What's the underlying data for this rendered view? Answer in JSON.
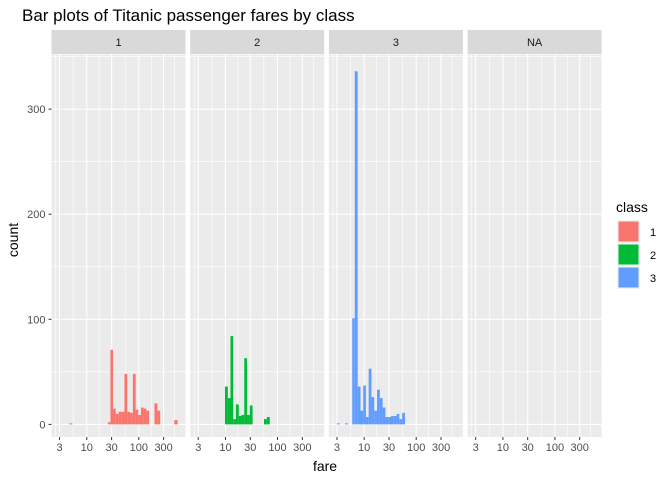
{
  "chart_data": {
    "type": "bar",
    "title": "Bar plots of Titanic passenger fares by class",
    "xlabel": "fare",
    "ylabel": "count",
    "x_scale": "log10",
    "x_ticks": [
      3,
      10,
      30,
      100,
      300
    ],
    "x_tick_labels": [
      "3",
      "10",
      "30",
      "100",
      "300"
    ],
    "y_ticks": [
      0,
      100,
      200,
      300
    ],
    "y_tick_labels": [
      "0",
      "100",
      "200",
      "300"
    ],
    "ylim": [
      -12,
      352
    ],
    "xlim": [
      2.1,
      790
    ],
    "grid": true,
    "legend": {
      "title": "class",
      "position": "right",
      "entries": [
        {
          "label": "1",
          "color": "#F8766D"
        },
        {
          "label": "2",
          "color": "#00BA38"
        },
        {
          "label": "3",
          "color": "#619CFF"
        }
      ]
    },
    "facets": [
      {
        "label": "1",
        "color": "#F8766D",
        "bins": [
          {
            "x0": 4.6,
            "x1": 5.3,
            "count": 1
          },
          {
            "x0": 25.5,
            "x1": 28.5,
            "count": 2
          },
          {
            "x0": 28.5,
            "x1": 32.0,
            "count": 71
          },
          {
            "x0": 32.0,
            "x1": 36.0,
            "count": 15
          },
          {
            "x0": 36.0,
            "x1": 41.0,
            "count": 10
          },
          {
            "x0": 41.0,
            "x1": 47.0,
            "count": 12
          },
          {
            "x0": 47.0,
            "x1": 53.0,
            "count": 12
          },
          {
            "x0": 53.0,
            "x1": 60.0,
            "count": 48
          },
          {
            "x0": 60.0,
            "x1": 68.0,
            "count": 12
          },
          {
            "x0": 68.0,
            "x1": 77.0,
            "count": 11
          },
          {
            "x0": 77.0,
            "x1": 87.0,
            "count": 48
          },
          {
            "x0": 87.0,
            "x1": 98.0,
            "count": 14
          },
          {
            "x0": 98.0,
            "x1": 110.0,
            "count": 9
          },
          {
            "x0": 110.0,
            "x1": 124.0,
            "count": 16
          },
          {
            "x0": 124.0,
            "x1": 140.0,
            "count": 15
          },
          {
            "x0": 140.0,
            "x1": 158.0,
            "count": 13
          },
          {
            "x0": 200.0,
            "x1": 228.0,
            "count": 20
          },
          {
            "x0": 228.0,
            "x1": 258.0,
            "count": 13
          },
          {
            "x0": 480.0,
            "x1": 560.0,
            "count": 4
          }
        ]
      },
      {
        "label": "2",
        "color": "#00BA38",
        "bins": [
          {
            "x0": 9.8,
            "x1": 11.1,
            "count": 36
          },
          {
            "x0": 11.1,
            "x1": 12.5,
            "count": 25
          },
          {
            "x0": 12.5,
            "x1": 14.1,
            "count": 84
          },
          {
            "x0": 14.1,
            "x1": 15.9,
            "count": 5
          },
          {
            "x0": 15.9,
            "x1": 18.0,
            "count": 19
          },
          {
            "x0": 18.0,
            "x1": 20.4,
            "count": 8
          },
          {
            "x0": 20.4,
            "x1": 23.0,
            "count": 9
          },
          {
            "x0": 23.0,
            "x1": 26.0,
            "count": 63
          },
          {
            "x0": 26.0,
            "x1": 29.4,
            "count": 9
          },
          {
            "x0": 29.4,
            "x1": 33.2,
            "count": 18
          },
          {
            "x0": 55.0,
            "x1": 62.5,
            "count": 5
          },
          {
            "x0": 62.5,
            "x1": 71.0,
            "count": 7
          }
        ]
      },
      {
        "label": "3",
        "color": "#619CFF",
        "bins": [
          {
            "x0": 3.0,
            "x1": 3.4,
            "count": 1
          },
          {
            "x0": 4.3,
            "x1": 4.9,
            "count": 1
          },
          {
            "x0": 5.9,
            "x1": 6.6,
            "count": 101
          },
          {
            "x0": 6.6,
            "x1": 7.5,
            "count": 336
          },
          {
            "x0": 7.5,
            "x1": 8.5,
            "count": 36
          },
          {
            "x0": 8.5,
            "x1": 9.6,
            "count": 13
          },
          {
            "x0": 9.6,
            "x1": 10.8,
            "count": 37
          },
          {
            "x0": 10.8,
            "x1": 12.2,
            "count": 7
          },
          {
            "x0": 12.2,
            "x1": 13.8,
            "count": 53
          },
          {
            "x0": 13.8,
            "x1": 15.6,
            "count": 26
          },
          {
            "x0": 15.6,
            "x1": 17.6,
            "count": 13
          },
          {
            "x0": 17.6,
            "x1": 20.0,
            "count": 33
          },
          {
            "x0": 20.0,
            "x1": 22.6,
            "count": 25
          },
          {
            "x0": 22.6,
            "x1": 25.6,
            "count": 16
          },
          {
            "x0": 25.6,
            "x1": 29.0,
            "count": 7
          },
          {
            "x0": 29.0,
            "x1": 32.8,
            "count": 7
          },
          {
            "x0": 32.8,
            "x1": 37.0,
            "count": 8
          },
          {
            "x0": 37.0,
            "x1": 42.0,
            "count": 8
          },
          {
            "x0": 42.0,
            "x1": 47.5,
            "count": 10
          },
          {
            "x0": 47.5,
            "x1": 53.8,
            "count": 5
          },
          {
            "x0": 53.8,
            "x1": 61.0,
            "count": 11
          }
        ]
      },
      {
        "label": "NA",
        "color": "#999999",
        "bins": []
      }
    ]
  }
}
